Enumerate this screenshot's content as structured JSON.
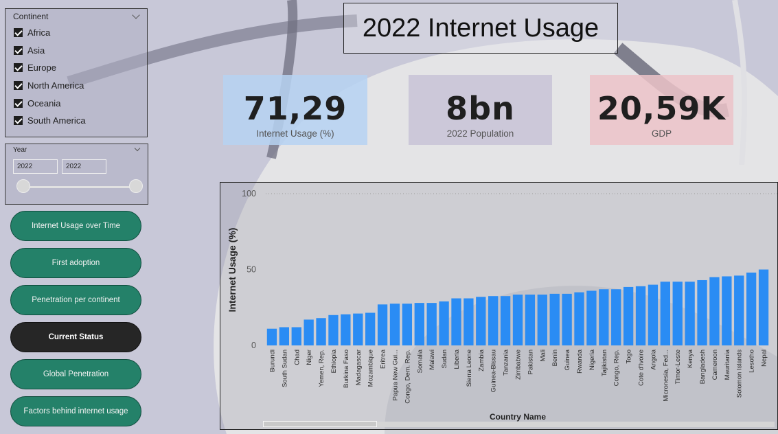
{
  "slicer_continent": {
    "title": "Continent",
    "items": [
      {
        "label": "Africa",
        "checked": true
      },
      {
        "label": "Asia",
        "checked": true
      },
      {
        "label": "Europe",
        "checked": true
      },
      {
        "label": "North America",
        "checked": true
      },
      {
        "label": "Oceania",
        "checked": true
      },
      {
        "label": "South America",
        "checked": true
      }
    ]
  },
  "slicer_year": {
    "title": "Year",
    "from": "2022",
    "to": "2022"
  },
  "nav": {
    "buttons": [
      "Internet Usage over Time",
      "First adoption",
      "Penetration per continent",
      "Current Status",
      "Global Penetration",
      "Factors behind internet usage"
    ],
    "active": "Current Status"
  },
  "title": "2022 Internet Usage",
  "kpis": [
    {
      "value": "71,29",
      "label": "Internet Usage (%)",
      "color": "#b6d2f2"
    },
    {
      "value": "8bn",
      "label": "2022 Population",
      "color": "#c8c3d6"
    },
    {
      "value": "20,59K",
      "label": "GDP",
      "color": "#ecc3c8"
    }
  ],
  "chart_data": {
    "type": "bar",
    "xlabel": "Country Name",
    "ylabel": "Internet Usage (%)",
    "ylim": [
      0,
      100
    ],
    "yticks": [
      "0",
      "50",
      "100"
    ],
    "bar_color": "#2a8cf4",
    "grid": false,
    "categories": [
      "Burundi",
      "South Sudan",
      "Chad",
      "Niger",
      "Yemen, Rep.",
      "Ethiopia",
      "Burkina Faso",
      "Madagascar",
      "Mozambique",
      "Eritrea",
      "Papua New Gui...",
      "Congo, Dem. Rep.",
      "Somalia",
      "Malawi",
      "Sudan",
      "Liberia",
      "Sierra Leone",
      "Zambia",
      "Guinea-Bissau",
      "Tanzania",
      "Zimbabwe",
      "Pakistan",
      "Mali",
      "Benin",
      "Guinea",
      "Rwanda",
      "Nigeria",
      "Tajikistan",
      "Congo, Rep.",
      "Togo",
      "Cote d'Ivoire",
      "Angola",
      "Micronesia, Fed...",
      "Timor-Leste",
      "Kenya",
      "Bangladesh",
      "Cameroon",
      "Mauritania",
      "Solomon Islands",
      "Lesotho",
      "Nepal"
    ],
    "values": [
      11,
      12,
      12,
      17,
      18,
      20,
      20.5,
      21,
      21.5,
      27,
      27.5,
      27.5,
      28,
      28,
      29,
      31,
      31,
      32,
      32.5,
      32.5,
      33.5,
      33.5,
      33.5,
      34,
      34,
      35,
      36,
      37,
      37,
      38.5,
      39,
      40,
      42,
      42,
      42,
      43,
      45,
      45.5,
      46,
      48,
      50
    ]
  }
}
